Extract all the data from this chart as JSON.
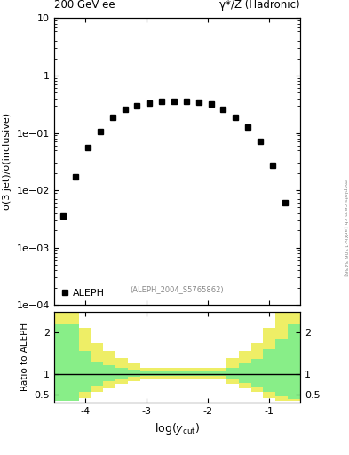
{
  "title_left": "200 GeV ee",
  "title_right": "γ*/Z (Hadronic)",
  "ylabel_main": "σ(3 jet)/σ(inclusive)",
  "ylabel_ratio": "Ratio to ALEPH",
  "ref_label": "(ALEPH_2004_S5765862)",
  "legend_label": "ALEPH",
  "watermark": "mcplots.cern.ch [arXiv:1306.3436]",
  "main_ylim": [
    0.0001,
    10
  ],
  "main_xlim": [
    -4.5,
    -0.5
  ],
  "ratio_ylim": [
    0.3,
    2.5
  ],
  "data_x": [
    -4.35,
    -4.15,
    -3.95,
    -3.75,
    -3.55,
    -3.35,
    -3.15,
    -2.95,
    -2.75,
    -2.55,
    -2.35,
    -2.15,
    -1.95,
    -1.75,
    -1.55,
    -1.35,
    -1.15,
    -0.95,
    -0.75
  ],
  "data_y": [
    0.0035,
    0.017,
    0.055,
    0.105,
    0.185,
    0.255,
    0.3,
    0.33,
    0.35,
    0.36,
    0.355,
    0.345,
    0.32,
    0.255,
    0.185,
    0.125,
    0.07,
    0.027,
    0.006
  ],
  "ratio_bins_x": [
    -4.5,
    -4.3,
    -4.1,
    -3.9,
    -3.7,
    -3.5,
    -3.3,
    -3.1,
    -2.5,
    -1.9,
    -1.7,
    -1.5,
    -1.3,
    -1.1,
    -0.9,
    -0.7,
    -0.5
  ],
  "green_low": [
    0.35,
    0.35,
    0.55,
    0.72,
    0.82,
    0.88,
    0.92,
    0.95,
    0.95,
    0.95,
    0.88,
    0.78,
    0.68,
    0.55,
    0.45,
    0.38
  ],
  "green_high": [
    2.2,
    2.2,
    1.55,
    1.3,
    1.2,
    1.15,
    1.1,
    1.08,
    1.08,
    1.08,
    1.15,
    1.25,
    1.35,
    1.6,
    1.85,
    2.2
  ],
  "yellow_low": [
    0.35,
    0.35,
    0.42,
    0.55,
    0.65,
    0.75,
    0.82,
    0.88,
    0.88,
    0.88,
    0.75,
    0.65,
    0.55,
    0.42,
    0.35,
    0.35
  ],
  "yellow_high": [
    2.5,
    2.5,
    2.1,
    1.75,
    1.55,
    1.38,
    1.25,
    1.15,
    1.15,
    1.15,
    1.38,
    1.55,
    1.75,
    2.1,
    2.5,
    2.5
  ],
  "green_color": "#88ee88",
  "yellow_color": "#eeee66",
  "data_color": "#000000",
  "marker": "s",
  "marker_size": 4,
  "xtick_vals": [
    -4,
    -3,
    -2,
    -1
  ],
  "ratio_yticks": [
    0.5,
    1.0,
    2.0
  ],
  "ratio_yticklabels": [
    "0.5",
    "1",
    "2"
  ]
}
